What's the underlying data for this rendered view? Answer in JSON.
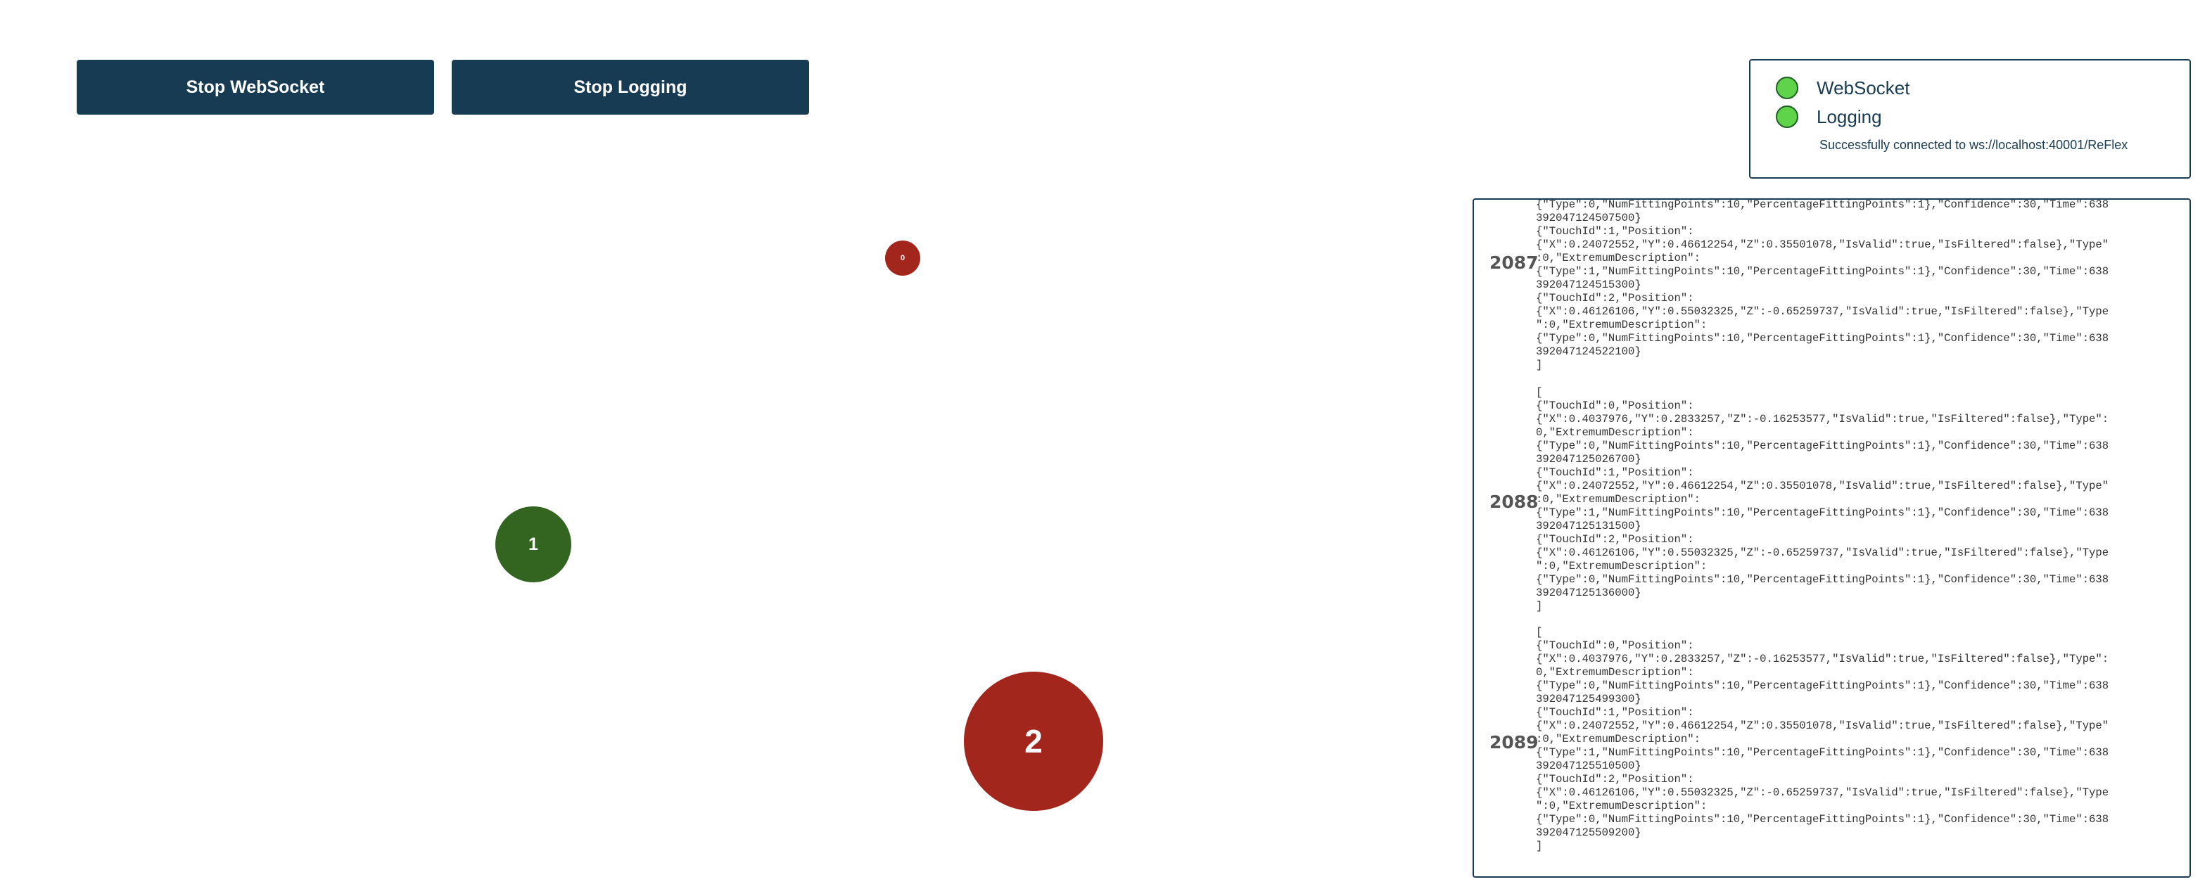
{
  "controls": {
    "stop_websocket_label": "Stop WebSocket",
    "stop_logging_label": "Stop Logging"
  },
  "status": {
    "items": [
      {
        "label": "WebSocket",
        "state": "active",
        "color": "#5fd34a"
      },
      {
        "label": "Logging",
        "state": "active",
        "color": "#5fd34a"
      }
    ],
    "message": "Successfully connected to ws://localhost:40001/ReFlex"
  },
  "touches": [
    {
      "id": "0",
      "color": "#a3261d"
    },
    {
      "id": "1",
      "color": "#336420"
    },
    {
      "id": "2",
      "color": "#a3261d"
    }
  ],
  "log": {
    "entries": [
      {
        "number": "2087",
        "lines": [
          "{\"Type\":0,\"NumFittingPoints\":10,\"PercentageFittingPoints\":1},\"Confidence\":30,\"Time\":638",
          "392047124507500}",
          "{\"TouchId\":1,\"Position\":",
          "{\"X\":0.24072552,\"Y\":0.46612254,\"Z\":0.35501078,\"IsValid\":true,\"IsFiltered\":false},\"Type\"",
          ":0,\"ExtremumDescription\":",
          "{\"Type\":1,\"NumFittingPoints\":10,\"PercentageFittingPoints\":1},\"Confidence\":30,\"Time\":638",
          "392047124515300}",
          "{\"TouchId\":2,\"Position\":",
          "{\"X\":0.46126106,\"Y\":0.55032325,\"Z\":-0.65259737,\"IsValid\":true,\"IsFiltered\":false},\"Type",
          "\":0,\"ExtremumDescription\":",
          "{\"Type\":0,\"NumFittingPoints\":10,\"PercentageFittingPoints\":1},\"Confidence\":30,\"Time\":638",
          "392047124522100}",
          "]"
        ]
      },
      {
        "number": "2088",
        "lines": [
          "[",
          "{\"TouchId\":0,\"Position\":",
          "{\"X\":0.4037976,\"Y\":0.2833257,\"Z\":-0.16253577,\"IsValid\":true,\"IsFiltered\":false},\"Type\":",
          "0,\"ExtremumDescription\":",
          "{\"Type\":0,\"NumFittingPoints\":10,\"PercentageFittingPoints\":1},\"Confidence\":30,\"Time\":638",
          "392047125026700}",
          "{\"TouchId\":1,\"Position\":",
          "{\"X\":0.24072552,\"Y\":0.46612254,\"Z\":0.35501078,\"IsValid\":true,\"IsFiltered\":false},\"Type\"",
          ":0,\"ExtremumDescription\":",
          "{\"Type\":1,\"NumFittingPoints\":10,\"PercentageFittingPoints\":1},\"Confidence\":30,\"Time\":638",
          "392047125131500}",
          "{\"TouchId\":2,\"Position\":",
          "{\"X\":0.46126106,\"Y\":0.55032325,\"Z\":-0.65259737,\"IsValid\":true,\"IsFiltered\":false},\"Type",
          "\":0,\"ExtremumDescription\":",
          "{\"Type\":0,\"NumFittingPoints\":10,\"PercentageFittingPoints\":1},\"Confidence\":30,\"Time\":638",
          "392047125136000}",
          "]"
        ]
      },
      {
        "number": "2089",
        "lines": [
          "[",
          "{\"TouchId\":0,\"Position\":",
          "{\"X\":0.4037976,\"Y\":0.2833257,\"Z\":-0.16253577,\"IsValid\":true,\"IsFiltered\":false},\"Type\":",
          "0,\"ExtremumDescription\":",
          "{\"Type\":0,\"NumFittingPoints\":10,\"PercentageFittingPoints\":1},\"Confidence\":30,\"Time\":638",
          "392047125499300}",
          "{\"TouchId\":1,\"Position\":",
          "{\"X\":0.24072552,\"Y\":0.46612254,\"Z\":0.35501078,\"IsValid\":true,\"IsFiltered\":false},\"Type\"",
          ":0,\"ExtremumDescription\":",
          "{\"Type\":1,\"NumFittingPoints\":10,\"PercentageFittingPoints\":1},\"Confidence\":30,\"Time\":638",
          "392047125510500}",
          "{\"TouchId\":2,\"Position\":",
          "{\"X\":0.46126106,\"Y\":0.55032325,\"Z\":-0.65259737,\"IsValid\":true,\"IsFiltered\":false},\"Type",
          "\":0,\"ExtremumDescription\":",
          "{\"Type\":0,\"NumFittingPoints\":10,\"PercentageFittingPoints\":1},\"Confidence\":30,\"Time\":638",
          "392047125509200}",
          "]"
        ]
      }
    ]
  }
}
